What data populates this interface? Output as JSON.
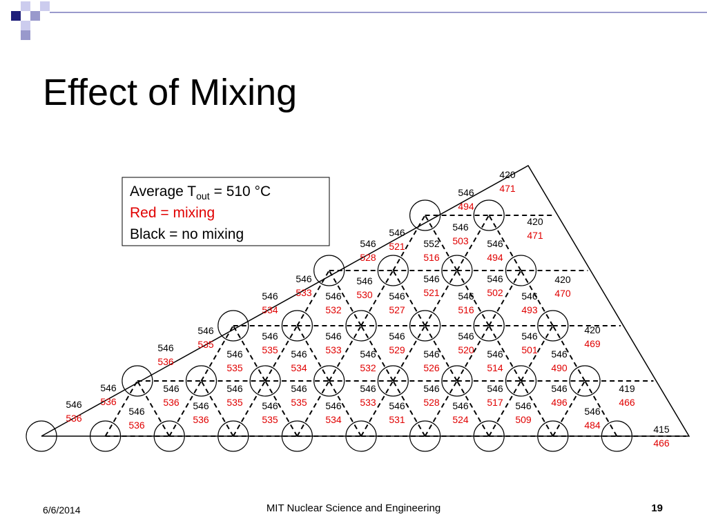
{
  "header": {
    "title": "Effect of Mixing"
  },
  "legend": {
    "average_label": "Average T",
    "average_subscript": "out",
    "average_value": "= 510 °C",
    "red_line": "Red = mixing",
    "black_line": "Black = no mixing"
  },
  "subchannels": [
    {
      "no_mixing": 420,
      "mixing": 471
    },
    {
      "no_mixing": 420,
      "mixing": 471
    },
    {
      "no_mixing": 420,
      "mixing": 470
    },
    {
      "no_mixing": 420,
      "mixing": 469
    },
    {
      "no_mixing": 419,
      "mixing": 466
    },
    {
      "no_mixing": 415,
      "mixing": 466
    },
    {
      "no_mixing": 546,
      "mixing": 494
    },
    {
      "no_mixing": 546,
      "mixing": 521
    },
    {
      "no_mixing": 546,
      "mixing": 528
    },
    {
      "no_mixing": 546,
      "mixing": 533
    },
    {
      "no_mixing": 546,
      "mixing": 534
    },
    {
      "no_mixing": 546,
      "mixing": 535
    },
    {
      "no_mixing": 546,
      "mixing": 536
    },
    {
      "no_mixing": 546,
      "mixing": 536
    },
    {
      "no_mixing": 546,
      "mixing": 536
    },
    {
      "no_mixing": 546,
      "mixing": 503
    },
    {
      "no_mixing": 552,
      "mixing": 516
    },
    {
      "no_mixing": 546,
      "mixing": 494
    },
    {
      "no_mixing": 546,
      "mixing": 530
    },
    {
      "no_mixing": 546,
      "mixing": 532
    },
    {
      "no_mixing": 546,
      "mixing": 527
    },
    {
      "no_mixing": 546,
      "mixing": 521
    },
    {
      "no_mixing": 546,
      "mixing": 516
    },
    {
      "no_mixing": 546,
      "mixing": 502
    },
    {
      "no_mixing": 546,
      "mixing": 493
    },
    {
      "no_mixing": 546,
      "mixing": 535
    },
    {
      "no_mixing": 546,
      "mixing": 533
    },
    {
      "no_mixing": 546,
      "mixing": 529
    },
    {
      "no_mixing": 546,
      "mixing": 520
    },
    {
      "no_mixing": 546,
      "mixing": 501
    },
    {
      "no_mixing": 546,
      "mixing": 535
    },
    {
      "no_mixing": 546,
      "mixing": 534
    },
    {
      "no_mixing": 546,
      "mixing": 532
    },
    {
      "no_mixing": 546,
      "mixing": 526
    },
    {
      "no_mixing": 546,
      "mixing": 514
    },
    {
      "no_mixing": 546,
      "mixing": 490
    },
    {
      "no_mixing": 546,
      "mixing": 536
    },
    {
      "no_mixing": 546,
      "mixing": 535
    },
    {
      "no_mixing": 546,
      "mixing": 535
    },
    {
      "no_mixing": 546,
      "mixing": 533
    },
    {
      "no_mixing": 546,
      "mixing": 528
    },
    {
      "no_mixing": 546,
      "mixing": 517
    },
    {
      "no_mixing": 546,
      "mixing": 496
    },
    {
      "no_mixing": 546,
      "mixing": 536
    },
    {
      "no_mixing": 546,
      "mixing": 536
    },
    {
      "no_mixing": 546,
      "mixing": 535
    },
    {
      "no_mixing": 546,
      "mixing": 534
    },
    {
      "no_mixing": 546,
      "mixing": 531
    },
    {
      "no_mixing": 546,
      "mixing": 524
    },
    {
      "no_mixing": 546,
      "mixing": 509
    },
    {
      "no_mixing": 546,
      "mixing": 484
    }
  ],
  "footer": {
    "date": "6/6/2014",
    "organization": "MIT Nuclear Science and Engineering",
    "page": "19"
  }
}
